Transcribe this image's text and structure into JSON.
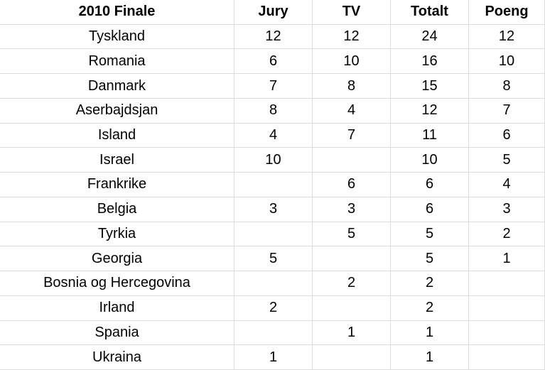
{
  "table": {
    "header": [
      "2010 Finale",
      "Jury",
      "TV",
      "Totalt",
      "Poeng"
    ],
    "rows": [
      [
        "Tyskland",
        12,
        12,
        24,
        12
      ],
      [
        "Romania",
        6,
        10,
        16,
        10
      ],
      [
        "Danmark",
        7,
        8,
        15,
        8
      ],
      [
        "Aserbajdsjan",
        8,
        4,
        12,
        7
      ],
      [
        "Island",
        4,
        7,
        11,
        6
      ],
      [
        "Israel",
        10,
        null,
        10,
        5
      ],
      [
        "Frankrike",
        null,
        6,
        6,
        4
      ],
      [
        "Belgia",
        3,
        3,
        6,
        3
      ],
      [
        "Tyrkia",
        null,
        5,
        5,
        2
      ],
      [
        "Georgia",
        5,
        null,
        5,
        1
      ],
      [
        "Bosnia og Hercegovina",
        null,
        2,
        2,
        null
      ],
      [
        "Irland",
        2,
        null,
        2,
        null
      ],
      [
        "Spania",
        null,
        1,
        1,
        null
      ],
      [
        "Ukraina",
        1,
        null,
        1,
        null
      ]
    ]
  }
}
